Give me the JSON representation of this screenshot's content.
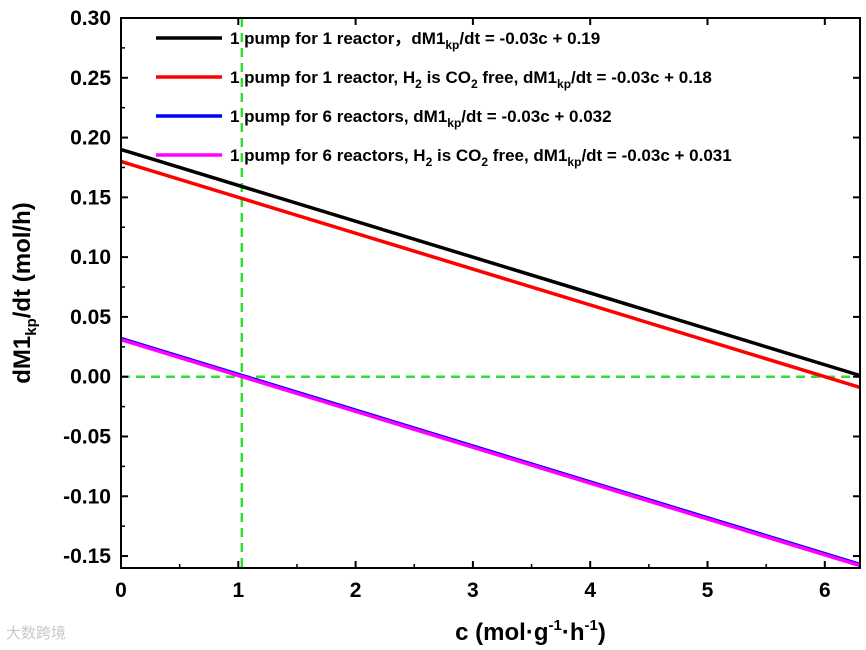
{
  "chart_data": {
    "type": "line",
    "xlabel": {
      "base": "c (mol·g",
      "sup1": "-1",
      "mid": "·h",
      "sup2": "-1",
      "end": ")"
    },
    "ylabel": {
      "base": "dM1",
      "sub": "kp",
      "end": "/dt (mol/h)"
    },
    "xlim": [
      0,
      6.3
    ],
    "ylim": [
      -0.16,
      0.3
    ],
    "x_ticks": [
      0,
      1,
      2,
      3,
      4,
      5,
      6
    ],
    "x_tick_labels": [
      "0",
      "1",
      "2",
      "3",
      "4",
      "5",
      "6"
    ],
    "y_ticks": [
      -0.15,
      -0.1,
      -0.05,
      0.0,
      0.05,
      0.1,
      0.15,
      0.2,
      0.25,
      0.3
    ],
    "y_tick_labels": [
      "-0.15",
      "-0.10",
      "-0.05",
      "0.00",
      "0.05",
      "0.10",
      "0.15",
      "0.20",
      "0.25",
      "0.30"
    ],
    "grid": false,
    "legend_position": "top",
    "series": [
      {
        "color": "#000000",
        "slope": -0.03,
        "intercept": 0.19,
        "x": [
          0,
          6.3
        ],
        "y": [
          0.19,
          0.001
        ],
        "legend": [
          {
            "t": "1 pump for 1 reactor，dM1"
          },
          {
            "t": "kp",
            "sub": true
          },
          {
            "t": "/dt = -0.03c + 0.19"
          }
        ]
      },
      {
        "color": "#ff0000",
        "slope": -0.03,
        "intercept": 0.18,
        "x": [
          0,
          6.3
        ],
        "y": [
          0.18,
          -0.009
        ],
        "legend": [
          {
            "t": "1 pump for 1 reactor, H"
          },
          {
            "t": "2",
            "sub": true
          },
          {
            "t": " is CO"
          },
          {
            "t": "2",
            "sub": true
          },
          {
            "t": " free,  dM1"
          },
          {
            "t": "kp",
            "sub": true
          },
          {
            "t": "/dt = -0.03c + 0.18"
          }
        ]
      },
      {
        "color": "#0000ff",
        "slope": -0.03,
        "intercept": 0.032,
        "x": [
          0,
          6.3
        ],
        "y": [
          0.032,
          -0.157
        ],
        "legend": [
          {
            "t": "1 pump for 6 reactors, dM1"
          },
          {
            "t": "kp",
            "sub": true
          },
          {
            "t": "/dt = -0.03c + 0.032"
          }
        ]
      },
      {
        "color": "#ff00ff",
        "slope": -0.03,
        "intercept": 0.031,
        "x": [
          0,
          6.3
        ],
        "y": [
          0.031,
          -0.158
        ],
        "legend": [
          {
            "t": "1 pump for 6 reactors, H"
          },
          {
            "t": "2",
            "sub": true
          },
          {
            "t": " is CO"
          },
          {
            "t": "2",
            "sub": true
          },
          {
            "t": " free, dM1"
          },
          {
            "t": "kp",
            "sub": true
          },
          {
            "t": "/dt = -0.03c + 0.031"
          }
        ]
      }
    ],
    "reference_lines": [
      {
        "orientation": "horizontal",
        "value": 0.0,
        "color": "#33dd33",
        "style": "dashed"
      },
      {
        "orientation": "vertical",
        "value": 1.03,
        "color": "#33dd33",
        "style": "dashed"
      }
    ]
  },
  "watermark": "大数跨境"
}
